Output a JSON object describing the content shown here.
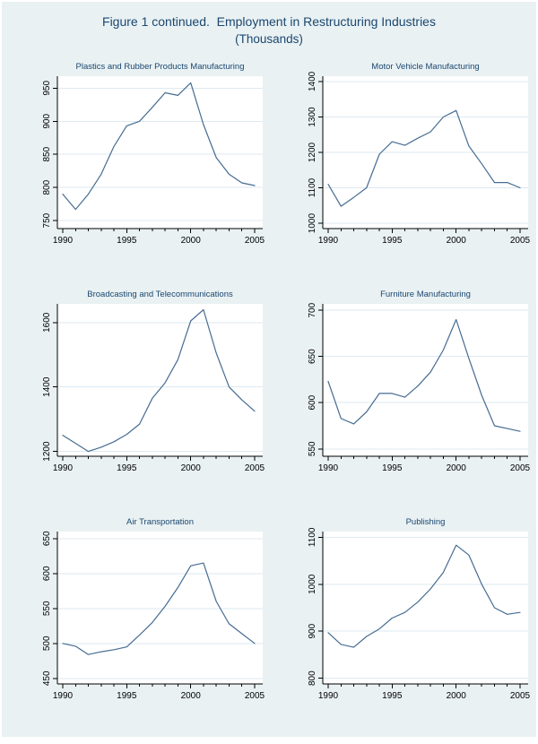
{
  "header": {
    "title": "Figure 1 continued.  Employment in Restructuring Industries",
    "subtitle": "(Thousands)"
  },
  "style": {
    "figure_background": "#e9f1f3",
    "plot_background": "#ffffff",
    "gridline_color": "#dde9f1",
    "line_color": "#466c92",
    "title_color": "#1a476f",
    "axis_color": "#000000",
    "tick_label_color": "#000000"
  },
  "chart_data": [
    {
      "type": "line",
      "title": "Plastics and Rubber Products Manufacturing",
      "x": [
        1990,
        1991,
        1992,
        1993,
        1994,
        1995,
        1996,
        1997,
        1998,
        1999,
        2000,
        2001,
        2002,
        2003,
        2004,
        2005
      ],
      "values": [
        790,
        767,
        790,
        820,
        862,
        893,
        900,
        921,
        943,
        939,
        958,
        895,
        845,
        820,
        807,
        803
      ],
      "xticks": [
        1990,
        1995,
        2000,
        2005
      ],
      "yticks": [
        750,
        800,
        850,
        900,
        950
      ],
      "xlim": [
        1990,
        2005
      ],
      "ylim": [
        738,
        968
      ],
      "xlabel": "",
      "ylabel": "",
      "grid": true,
      "legend": "none"
    },
    {
      "type": "line",
      "title": "Motor Vehicle Manufacturing",
      "x": [
        1990,
        1991,
        1992,
        1993,
        1994,
        1995,
        1996,
        1997,
        1998,
        1999,
        2000,
        2001,
        2002,
        2003,
        2004,
        2005
      ],
      "values": [
        1110,
        1048,
        1073,
        1100,
        1195,
        1230,
        1220,
        1240,
        1258,
        1300,
        1318,
        1218,
        1168,
        1115,
        1115,
        1100
      ],
      "xticks": [
        1990,
        1995,
        2000,
        2005
      ],
      "yticks": [
        1000,
        1100,
        1200,
        1300,
        1400
      ],
      "xlim": [
        1990,
        2005
      ],
      "ylim": [
        985,
        1415
      ],
      "xlabel": "",
      "ylabel": "",
      "grid": true,
      "legend": "none"
    },
    {
      "type": "line",
      "title": "Broadcasting and Telecommunications",
      "x": [
        1990,
        1991,
        1992,
        1993,
        1994,
        1995,
        1996,
        1997,
        1998,
        1999,
        2000,
        2001,
        2002,
        2003,
        2004,
        2005
      ],
      "values": [
        1250,
        1225,
        1200,
        1213,
        1230,
        1253,
        1285,
        1365,
        1413,
        1485,
        1605,
        1640,
        1505,
        1400,
        1360,
        1325
      ],
      "xticks": [
        1990,
        1995,
        2000,
        2005
      ],
      "yticks": [
        1200,
        1400,
        1600
      ],
      "xlim": [
        1990,
        2005
      ],
      "ylim": [
        1185,
        1658
      ],
      "xlabel": "",
      "ylabel": "",
      "grid": true,
      "legend": "none"
    },
    {
      "type": "line",
      "title": "Furniture Manufacturing",
      "x": [
        1990,
        1991,
        1992,
        1993,
        1994,
        1995,
        1996,
        1997,
        1998,
        1999,
        2000,
        2001,
        2002,
        2003,
        2004,
        2005
      ],
      "values": [
        623,
        583,
        577,
        590,
        610,
        610,
        606,
        618,
        633,
        657,
        690,
        648,
        608,
        575,
        572,
        569
      ],
      "xticks": [
        1990,
        1995,
        2000,
        2005
      ],
      "yticks": [
        550,
        600,
        650,
        700
      ],
      "xlim": [
        1990,
        2005
      ],
      "ylim": [
        542,
        707
      ],
      "xlabel": "",
      "ylabel": "",
      "grid": true,
      "legend": "none"
    },
    {
      "type": "line",
      "title": "Air Transportation",
      "x": [
        1990,
        1991,
        1992,
        1993,
        1994,
        1995,
        1996,
        1997,
        1998,
        1999,
        2000,
        2001,
        2002,
        2003,
        2004,
        2005
      ],
      "values": [
        500,
        496,
        484,
        488,
        491,
        495,
        512,
        530,
        553,
        580,
        611,
        615,
        560,
        528,
        514,
        500
      ],
      "xticks": [
        1990,
        1995,
        2000,
        2005
      ],
      "yticks": [
        450,
        500,
        550,
        600,
        650
      ],
      "xlim": [
        1990,
        2005
      ],
      "ylim": [
        442,
        660
      ],
      "xlabel": "",
      "ylabel": "",
      "grid": true,
      "legend": "none"
    },
    {
      "type": "line",
      "title": "Publishing",
      "x": [
        1990,
        1991,
        1992,
        1993,
        1994,
        1995,
        1996,
        1997,
        1998,
        1999,
        2000,
        2001,
        2002,
        2003,
        2004,
        2005
      ],
      "values": [
        897,
        872,
        866,
        889,
        905,
        928,
        940,
        962,
        990,
        1025,
        1083,
        1062,
        1000,
        950,
        936,
        940
      ],
      "xticks": [
        1990,
        1995,
        2000,
        2005
      ],
      "yticks": [
        800,
        900,
        1000,
        1100
      ],
      "xlim": [
        1990,
        2005
      ],
      "ylim": [
        788,
        1112
      ],
      "xlabel": "",
      "ylabel": "",
      "grid": true,
      "legend": "none"
    }
  ]
}
